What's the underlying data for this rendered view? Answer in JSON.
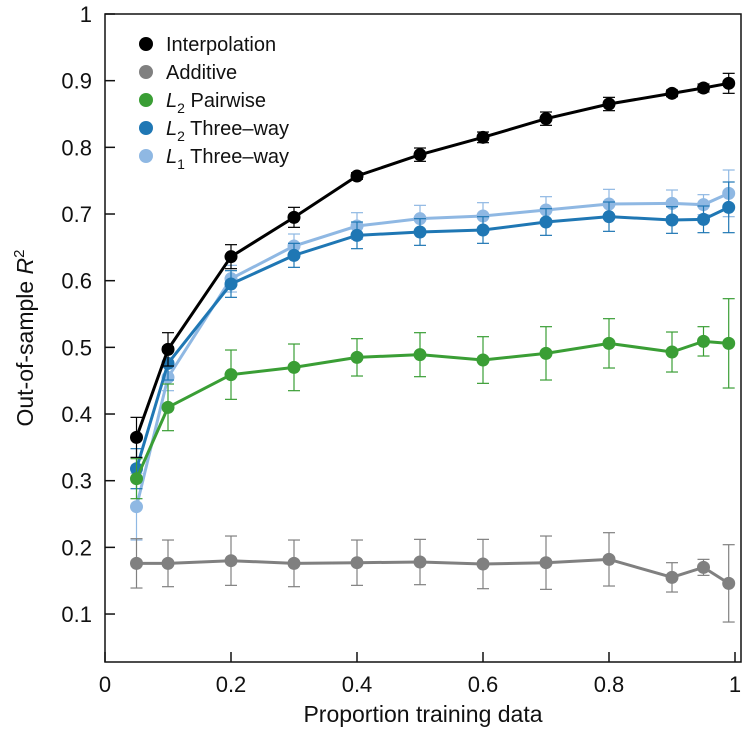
{
  "chart_data": {
    "type": "line",
    "title": "",
    "xlabel": "Proportion training data",
    "ylabel": "Out-of-sample R²",
    "ylabel_parts": {
      "text": "Out-of-sample ",
      "var": "R",
      "sup": "2"
    },
    "xlim": [
      0,
      1.012
    ],
    "ylim": [
      0.03,
      1.0
    ],
    "xticks": [
      0,
      0.2,
      0.4,
      0.6,
      0.8,
      1
    ],
    "xtick_labels": [
      "0",
      "0.2",
      "0.4",
      "0.6",
      "0.8",
      "1"
    ],
    "yticks": [
      0.1,
      0.2,
      0.3,
      0.4,
      0.5,
      0.6,
      0.7,
      0.8,
      0.9,
      1
    ],
    "ytick_labels": [
      "0.1",
      "0.2",
      "0.3",
      "0.4",
      "0.5",
      "0.6",
      "0.7",
      "0.8",
      "0.9",
      "1"
    ],
    "grid": false,
    "legend_position": "top-left",
    "x": [
      0.05,
      0.1,
      0.2,
      0.3,
      0.4,
      0.5,
      0.6,
      0.7,
      0.8,
      0.9,
      0.95,
      0.99
    ],
    "series": [
      {
        "name": "Interpolation",
        "label_var": "",
        "label_sub": "",
        "label_rest": "Interpolation",
        "color": "#000000",
        "values": [
          0.365,
          0.497,
          0.636,
          0.695,
          0.757,
          0.789,
          0.815,
          0.843,
          0.865,
          0.881,
          0.889,
          0.896
        ],
        "errors": [
          0.03,
          0.025,
          0.018,
          0.015,
          0.005,
          0.01,
          0.008,
          0.01,
          0.01,
          0.005,
          0.006,
          0.015
        ]
      },
      {
        "name": "Additive",
        "label_var": "",
        "label_sub": "",
        "label_rest": "Additive",
        "color": "#808080",
        "values": [
          0.176,
          0.176,
          0.18,
          0.176,
          0.177,
          0.178,
          0.175,
          0.177,
          0.182,
          0.155,
          0.17,
          0.146
        ],
        "errors": [
          0.037,
          0.035,
          0.037,
          0.035,
          0.034,
          0.034,
          0.037,
          0.04,
          0.04,
          0.022,
          0.012,
          0.058
        ]
      },
      {
        "name": "L2 Pairwise",
        "label_var": "L",
        "label_sub": "2",
        "label_rest": " Pairwise",
        "color": "#3a9e35",
        "values": [
          0.303,
          0.41,
          0.459,
          0.47,
          0.485,
          0.489,
          0.481,
          0.491,
          0.506,
          0.493,
          0.509,
          0.506
        ],
        "errors": [
          0.03,
          0.035,
          0.037,
          0.035,
          0.028,
          0.033,
          0.035,
          0.04,
          0.037,
          0.03,
          0.022,
          0.067
        ]
      },
      {
        "name": "L2 Three-way",
        "label_var": "L",
        "label_sub": "2",
        "label_rest": " Three–way",
        "color": "#1f77b4",
        "values": [
          0.318,
          0.476,
          0.595,
          0.638,
          0.668,
          0.673,
          0.676,
          0.688,
          0.696,
          0.691,
          0.692,
          0.71
        ],
        "errors": [
          0.03,
          0.025,
          0.02,
          0.018,
          0.02,
          0.02,
          0.02,
          0.02,
          0.022,
          0.02,
          0.02,
          0.038
        ]
      },
      {
        "name": "L1 Three-way",
        "label_var": "L",
        "label_sub": "1",
        "label_rest": " Three–way",
        "color": "#8fb8e3",
        "values": [
          0.261,
          0.455,
          0.603,
          0.652,
          0.682,
          0.693,
          0.697,
          0.706,
          0.715,
          0.716,
          0.714,
          0.731
        ],
        "errors": [
          0.05,
          0.02,
          0.02,
          0.018,
          0.02,
          0.02,
          0.02,
          0.02,
          0.022,
          0.02,
          0.015,
          0.035
        ]
      }
    ]
  }
}
